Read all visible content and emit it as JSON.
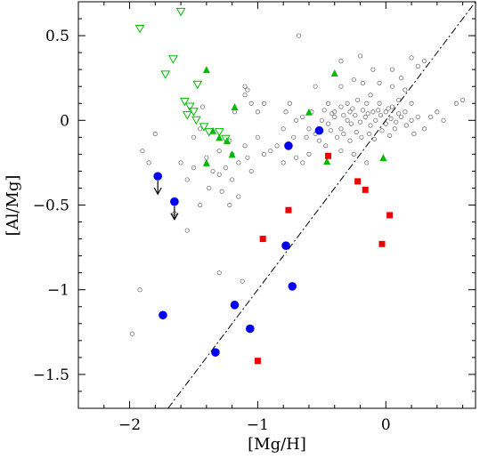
{
  "chart_data": {
    "type": "scatter",
    "title": "",
    "xlabel": "[Mg/H]",
    "ylabel": "[Al/Mg]",
    "xlim": [
      -2.4,
      0.7
    ],
    "ylim": [
      -1.7,
      0.7
    ],
    "xticks": [
      -2,
      -1,
      0
    ],
    "yticks": [
      0.5,
      0,
      -0.5,
      -1,
      -1.5
    ],
    "xtick_labels": [
      "−2",
      "−1",
      "0"
    ],
    "ytick_labels": [
      "0.5",
      "0",
      "−0.5",
      "−1",
      "−1.5"
    ],
    "grid": false,
    "legend": "none",
    "reference_line": {
      "style": "dash-dot",
      "slope": 1,
      "intercept": 0
    },
    "colors": {
      "blue": "#0000ee",
      "red": "#ee0000",
      "green": "#00bb00",
      "gray": "#777777"
    },
    "series": [
      {
        "marker": "open-circle-small",
        "color": "#777777",
        "points": [
          [
            -0.68,
            0.5
          ],
          [
            -0.35,
            0.35
          ],
          [
            -0.2,
            0.38
          ],
          [
            -0.1,
            0.3
          ],
          [
            0.05,
            0.3
          ],
          [
            0.2,
            0.37
          ],
          [
            0.25,
            0.32
          ],
          [
            0.3,
            0.35
          ],
          [
            0.12,
            0.25
          ],
          [
            -0.55,
            0.2
          ],
          [
            -0.35,
            0.2
          ],
          [
            -0.25,
            0.24
          ],
          [
            -0.18,
            0.22
          ],
          [
            -0.05,
            0.22
          ],
          [
            0.05,
            0.2
          ],
          [
            0.15,
            0.18
          ],
          [
            -0.12,
            0.15
          ],
          [
            -0.45,
            0.1
          ],
          [
            -0.4,
            0.05
          ],
          [
            -0.35,
            0.08
          ],
          [
            -0.3,
            0.1
          ],
          [
            -0.28,
            0.05
          ],
          [
            -0.22,
            0.12
          ],
          [
            -0.18,
            0.06
          ],
          [
            -0.15,
            0.1
          ],
          [
            -0.1,
            0.05
          ],
          [
            -0.05,
            0.1
          ],
          [
            0.0,
            0.05
          ],
          [
            0.05,
            0.08
          ],
          [
            0.1,
            0.12
          ],
          [
            0.15,
            0.05
          ],
          [
            0.2,
            0.1
          ],
          [
            0.25,
            0.02
          ],
          [
            -0.5,
            0.0
          ],
          [
            -0.45,
            -0.02
          ],
          [
            -0.4,
            0.02
          ],
          [
            -0.35,
            -0.05
          ],
          [
            -0.3,
            0.0
          ],
          [
            -0.27,
            -0.02
          ],
          [
            -0.24,
            0.03
          ],
          [
            -0.2,
            -0.01
          ],
          [
            -0.16,
            0.02
          ],
          [
            -0.12,
            -0.03
          ],
          [
            -0.08,
            0.0
          ],
          [
            -0.04,
            0.03
          ],
          [
            0.0,
            -0.02
          ],
          [
            0.04,
            0.01
          ],
          [
            0.08,
            -0.01
          ],
          [
            0.12,
            0.02
          ],
          [
            0.16,
            -0.03
          ],
          [
            0.2,
            0.0
          ],
          [
            -0.48,
            0.06
          ],
          [
            -0.42,
            0.04
          ],
          [
            -0.33,
            0.03
          ],
          [
            -0.26,
            0.07
          ],
          [
            -0.14,
            0.04
          ],
          [
            -0.06,
            0.06
          ],
          [
            0.02,
            0.07
          ],
          [
            0.1,
            0.04
          ],
          [
            -0.38,
            -0.1
          ],
          [
            -0.33,
            -0.08
          ],
          [
            -0.28,
            -0.12
          ],
          [
            -0.23,
            -0.07
          ],
          [
            -0.19,
            -0.1
          ],
          [
            -0.13,
            -0.08
          ],
          [
            -0.09,
            -0.11
          ],
          [
            -0.03,
            -0.06
          ],
          [
            0.03,
            -0.09
          ],
          [
            0.07,
            -0.05
          ],
          [
            -0.6,
            -0.05
          ],
          [
            -0.65,
            0.02
          ],
          [
            -0.7,
            0.0
          ],
          [
            -0.58,
            0.05
          ],
          [
            -0.62,
            -0.1
          ],
          [
            -0.55,
            -0.08
          ],
          [
            -0.52,
            -0.12
          ],
          [
            -0.47,
            -0.15
          ],
          [
            -0.43,
            -0.06
          ],
          [
            0.35,
            0.02
          ],
          [
            0.4,
            0.05
          ],
          [
            0.45,
            0.0
          ],
          [
            0.55,
            0.1
          ],
          [
            0.6,
            0.12
          ],
          [
            0.3,
            -0.05
          ],
          [
            0.22,
            -0.08
          ],
          [
            -0.25,
            -0.2
          ],
          [
            -0.15,
            -0.25
          ],
          [
            -0.35,
            -0.18
          ],
          [
            -0.72,
            -0.1
          ],
          [
            -0.8,
            -0.05
          ],
          [
            -0.78,
            0.05
          ],
          [
            -0.85,
            -0.15
          ],
          [
            -0.9,
            -0.18
          ],
          [
            -0.95,
            -0.2
          ],
          [
            -1.0,
            -0.1
          ],
          [
            -0.8,
            -0.25
          ],
          [
            -0.7,
            -0.22
          ],
          [
            -0.6,
            -0.2
          ],
          [
            -0.65,
            -0.25
          ],
          [
            -1.1,
            -0.15
          ],
          [
            -1.15,
            -0.25
          ],
          [
            -1.2,
            -0.2
          ],
          [
            -1.05,
            -0.3
          ],
          [
            -1.25,
            -0.28
          ],
          [
            -1.35,
            -0.3
          ],
          [
            -1.3,
            -0.18
          ],
          [
            -1.22,
            -0.12
          ],
          [
            -1.45,
            -0.05
          ],
          [
            -1.5,
            -0.1
          ],
          [
            -1.1,
            0.15
          ],
          [
            -1.0,
            0.05
          ],
          [
            -0.95,
            0.1
          ],
          [
            -0.75,
            0.1
          ],
          [
            -1.08,
            0.18
          ],
          [
            -1.8,
            -0.08
          ],
          [
            -1.85,
            -0.25
          ],
          [
            -1.9,
            -0.18
          ],
          [
            -1.55,
            -0.35
          ],
          [
            -1.5,
            -0.28
          ],
          [
            -1.4,
            -0.22
          ],
          [
            -1.28,
            -0.42
          ],
          [
            -1.38,
            -0.4
          ],
          [
            -1.2,
            -0.35
          ],
          [
            -1.3,
            -0.32
          ],
          [
            -1.15,
            -0.45
          ],
          [
            -1.22,
            -0.5
          ],
          [
            -1.45,
            -0.5
          ],
          [
            -1.6,
            -0.25
          ],
          [
            -1.55,
            -0.65
          ],
          [
            -1.65,
            -0.55
          ],
          [
            -1.92,
            -1.0
          ],
          [
            -1.3,
            -0.9
          ],
          [
            -1.12,
            -0.95
          ],
          [
            -1.98,
            -1.26
          ],
          [
            -1.08,
            -0.22
          ],
          [
            -1.18,
            0.05
          ],
          [
            -1.43,
            0.08
          ],
          [
            -1.05,
            0.1
          ],
          [
            -1.1,
            0.2
          ]
        ]
      },
      {
        "marker": "open-triangle-down",
        "color": "#00bb00",
        "points": [
          [
            -1.92,
            0.54
          ],
          [
            -1.72,
            0.27
          ],
          [
            -1.6,
            0.64
          ],
          [
            -1.66,
            0.36
          ],
          [
            -1.47,
            0.21
          ],
          [
            -1.57,
            0.11
          ],
          [
            -1.53,
            0.08
          ],
          [
            -1.5,
            0.05
          ],
          [
            -1.55,
            0.03
          ],
          [
            -1.48,
            0.0
          ],
          [
            -1.42,
            -0.04
          ],
          [
            -1.38,
            -0.07
          ],
          [
            -1.3,
            -0.07
          ],
          [
            -1.25,
            -0.11
          ]
        ]
      },
      {
        "marker": "filled-triangle-up",
        "color": "#00bb00",
        "points": [
          [
            -1.4,
            0.3
          ],
          [
            -1.18,
            0.08
          ],
          [
            -1.35,
            -0.06
          ],
          [
            -1.3,
            -0.1
          ],
          [
            -1.24,
            -0.12
          ],
          [
            -1.2,
            -0.2
          ],
          [
            -1.4,
            -0.25
          ],
          [
            -0.6,
            0.05
          ],
          [
            -0.4,
            0.28
          ],
          [
            -0.46,
            -0.24
          ],
          [
            -0.02,
            -0.22
          ]
        ]
      },
      {
        "marker": "filled-square",
        "color": "#ee0000",
        "points": [
          [
            -0.45,
            -0.21
          ],
          [
            -0.22,
            -0.36
          ],
          [
            -0.16,
            -0.41
          ],
          [
            -0.76,
            -0.53
          ],
          [
            0.03,
            -0.56
          ],
          [
            -0.96,
            -0.7
          ],
          [
            -0.03,
            -0.73
          ],
          [
            -1.0,
            -1.42
          ]
        ]
      },
      {
        "marker": "filled-circle",
        "color": "#0000ee",
        "points": [
          [
            -0.52,
            -0.06
          ],
          [
            -0.76,
            -0.15
          ],
          [
            -1.78,
            -0.33
          ],
          [
            -1.65,
            -0.48
          ],
          [
            -0.78,
            -0.74
          ],
          [
            -0.73,
            -0.98
          ],
          [
            -1.18,
            -1.09
          ],
          [
            -1.74,
            -1.15
          ],
          [
            -1.06,
            -1.23
          ],
          [
            -1.33,
            -1.37
          ]
        ]
      },
      {
        "marker": "upper-limit-arrow",
        "color": "#000000",
        "points": [
          [
            -1.78,
            -0.33
          ],
          [
            -1.65,
            -0.48
          ]
        ]
      }
    ]
  }
}
